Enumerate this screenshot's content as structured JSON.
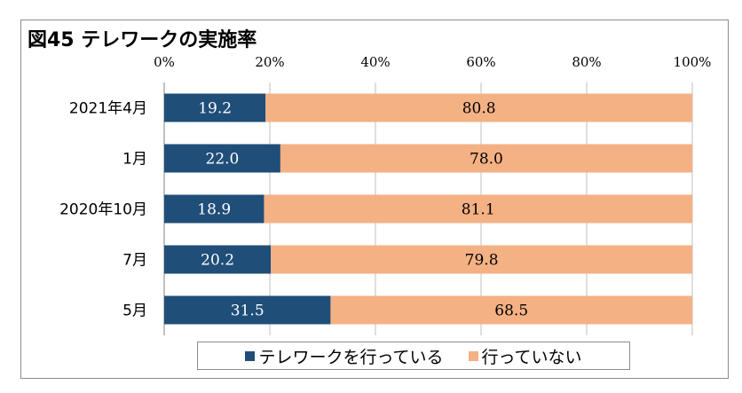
{
  "chart_data": {
    "type": "bar",
    "orientation": "horizontal",
    "stacked": true,
    "title": "図45 テレワークの実施率",
    "categories": [
      "2021年4月",
      "1月",
      "2020年10月",
      "7月",
      "5月"
    ],
    "series": [
      {
        "name": "テレワークを行っている",
        "color": "#1f4e79",
        "label_color": "#ffffff",
        "values": [
          19.2,
          22.0,
          18.9,
          20.2,
          31.5
        ]
      },
      {
        "name": "行っていない",
        "color": "#f4b183",
        "label_color": "#000000",
        "values": [
          80.8,
          78.0,
          81.1,
          79.8,
          68.5
        ]
      }
    ],
    "xlim": [
      0,
      100
    ],
    "xticks": [
      "0%",
      "20%",
      "40%",
      "60%",
      "80%",
      "100%"
    ],
    "grid": true,
    "legend_position": "bottom"
  }
}
